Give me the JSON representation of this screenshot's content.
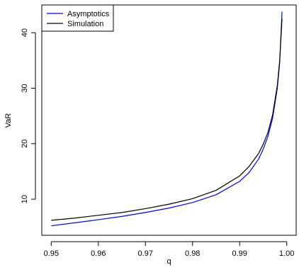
{
  "chart_data": {
    "type": "line",
    "xlabel": "q",
    "ylabel": "VaR",
    "xlim": [
      0.948,
      1.002
    ],
    "ylim": [
      3.5,
      45
    ],
    "x_ticks": [
      0.95,
      0.96,
      0.97,
      0.98,
      0.99,
      1.0
    ],
    "x_tick_labels": [
      "0.95",
      "0.96",
      "0.97",
      "0.98",
      "0.99",
      "1.00"
    ],
    "y_ticks": [
      10,
      20,
      30,
      40
    ],
    "y_tick_labels": [
      "10",
      "20",
      "30",
      "40"
    ],
    "grid": false,
    "legend_position": "top-left",
    "series": [
      {
        "name": "Asymptotics",
        "color": "#0000ff",
        "x": [
          0.95,
          0.955,
          0.96,
          0.965,
          0.97,
          0.975,
          0.98,
          0.985,
          0.99,
          0.992,
          0.994,
          0.995,
          0.996,
          0.997,
          0.998,
          0.9985,
          0.999
        ],
        "y": [
          5.2,
          5.75,
          6.3,
          6.9,
          7.6,
          8.4,
          9.4,
          10.8,
          13.2,
          14.8,
          17.2,
          19.0,
          21.3,
          24.6,
          30.0,
          34.6,
          43.8
        ]
      },
      {
        "name": "Simulation",
        "color": "#000000",
        "x": [
          0.95,
          0.955,
          0.96,
          0.965,
          0.97,
          0.975,
          0.98,
          0.985,
          0.99,
          0.992,
          0.994,
          0.995,
          0.996,
          0.997,
          0.998,
          0.9985,
          0.999
        ],
        "y": [
          6.2,
          6.6,
          7.1,
          7.6,
          8.3,
          9.1,
          10.1,
          11.6,
          14.2,
          15.9,
          18.2,
          19.9,
          22.0,
          25.2,
          30.5,
          35.0,
          42.5
        ]
      }
    ]
  }
}
